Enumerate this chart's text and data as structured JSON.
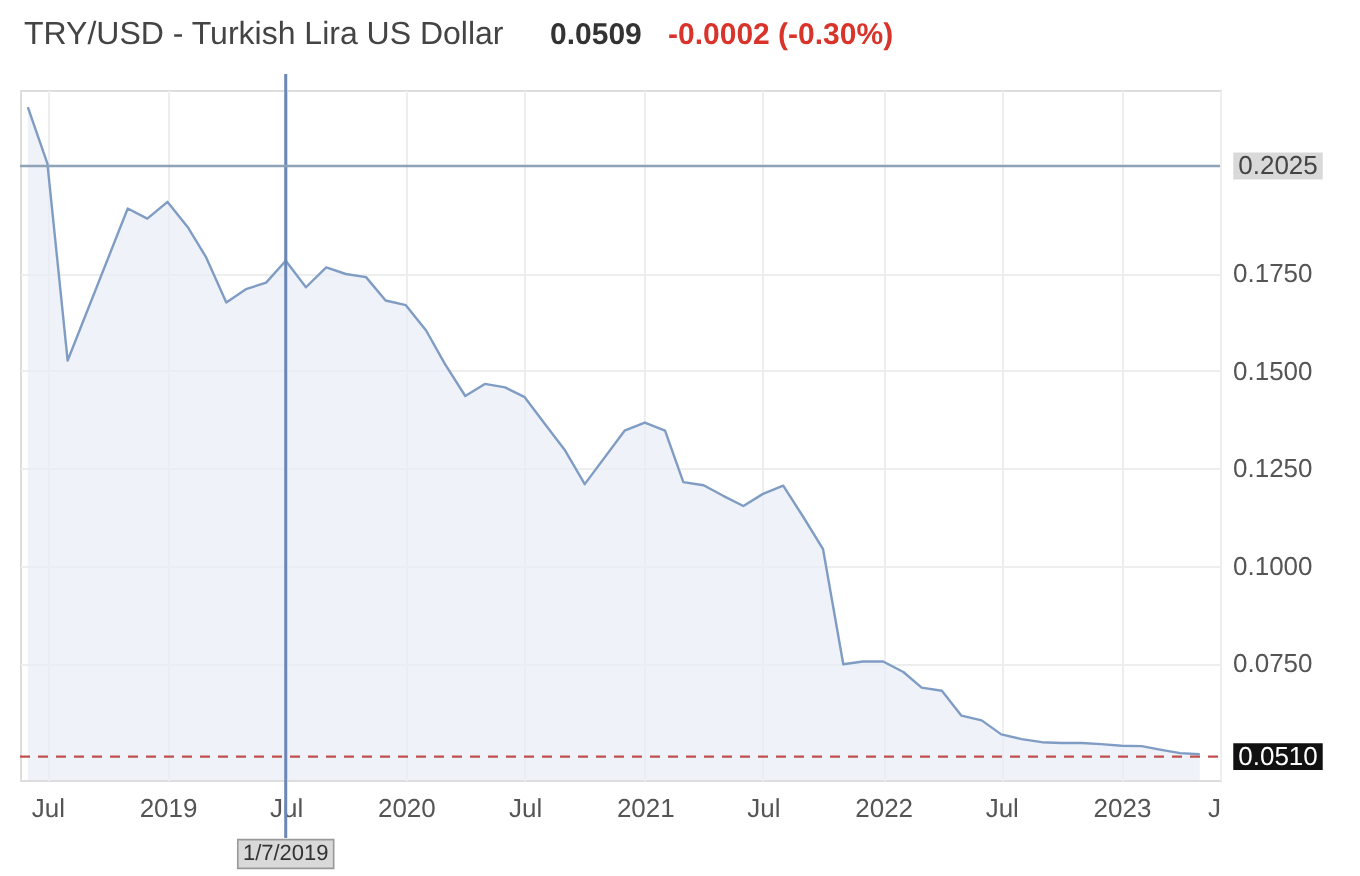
{
  "chart_data": {
    "type": "area",
    "title": "TRY/USD - Turkish Lira US Dollar",
    "annotations": [
      "0.0509",
      "-0.0002 (-0.30%)"
    ],
    "x": [
      "2018-06-01",
      "2018-07-01",
      "2018-08-01",
      "2018-11-01",
      "2018-12-01",
      "2019-01-01",
      "2019-02-01",
      "2019-03-01",
      "2019-04-01",
      "2019-05-01",
      "2019-06-01",
      "2019-07-01",
      "2019-08-01",
      "2019-09-01",
      "2019-10-01",
      "2019-11-01",
      "2019-12-01",
      "2020-01-01",
      "2020-02-01",
      "2020-03-01",
      "2020-04-01",
      "2020-05-01",
      "2020-06-01",
      "2020-07-01",
      "2020-08-01",
      "2020-09-01",
      "2020-10-01",
      "2020-12-01",
      "2021-01-01",
      "2021-02-01",
      "2021-03-01",
      "2021-04-01",
      "2021-05-01",
      "2021-06-01",
      "2021-07-01",
      "2021-08-01",
      "2021-09-01",
      "2021-10-01",
      "2021-11-01",
      "2021-12-01",
      "2022-01-01",
      "2022-02-01",
      "2022-03-01",
      "2022-04-01",
      "2022-05-01",
      "2022-06-01",
      "2022-07-01",
      "2022-08-01",
      "2022-09-01",
      "2022-10-01",
      "2022-11-01",
      "2022-12-01",
      "2023-01-01",
      "2023-02-01",
      "2023-03-01",
      "2023-04-01",
      "2023-05-01"
    ],
    "series": [
      {
        "color": "#7f9cc4",
        "values": [
          0.2176,
          0.2031,
          0.1526,
          0.1916,
          0.189,
          0.1933,
          0.1868,
          0.1791,
          0.1675,
          0.1709,
          0.1726,
          0.1782,
          0.1714,
          0.1765,
          0.1748,
          0.174,
          0.168,
          0.1668,
          0.1603,
          0.1517,
          0.1435,
          0.1466,
          0.1457,
          0.1432,
          0.1363,
          0.1295,
          0.1209,
          0.1346,
          0.1367,
          0.1346,
          0.1214,
          0.1206,
          0.1179,
          0.1153,
          0.1184,
          0.1205,
          0.1124,
          0.1042,
          0.0747,
          0.0754,
          0.0754,
          0.0727,
          0.0687,
          0.0679,
          0.0615,
          0.0603,
          0.0567,
          0.0555,
          0.0547,
          0.0545,
          0.0545,
          0.0542,
          0.0538,
          0.0537,
          0.0528,
          0.0519,
          0.0516
        ]
      }
    ],
    "xlim": [
      "2018-05-20",
      "2023-06-01"
    ],
    "xticks": [
      {
        "value": "2018-07-01",
        "label": "Jul"
      },
      {
        "value": "2019-01-01",
        "label": "2019"
      },
      {
        "value": "2019-07-01",
        "label": "Jul"
      },
      {
        "value": "2020-01-01",
        "label": "2020"
      },
      {
        "value": "2020-07-01",
        "label": "Jul"
      },
      {
        "value": "2021-01-01",
        "label": "2021"
      },
      {
        "value": "2021-07-01",
        "label": "Jul"
      },
      {
        "value": "2022-01-01",
        "label": "2022"
      },
      {
        "value": "2022-07-01",
        "label": "Jul"
      },
      {
        "value": "2023-01-01",
        "label": "2023"
      },
      {
        "value": "2023-06-01",
        "label": "J"
      }
    ],
    "ylim": [
      0.045,
      0.222
    ],
    "yticks": [
      {
        "value": 0.075,
        "label": "0.0750"
      },
      {
        "value": 0.1,
        "label": "0.1000"
      },
      {
        "value": 0.125,
        "label": "0.1250"
      },
      {
        "value": 0.15,
        "label": "0.1500"
      },
      {
        "value": 0.175,
        "label": "0.1750"
      }
    ],
    "grid": true,
    "ref_lines": [
      {
        "axis": "x",
        "value": "2019-07-01",
        "label": "1/7/2019",
        "color": "#6a87b8"
      },
      {
        "axis": "y",
        "value": 0.2025,
        "label": "0.2025",
        "color": "#8fa3b8"
      },
      {
        "axis": "y",
        "value": 0.051,
        "label": "0.0510",
        "color": "#c0504d",
        "line_style": "dashed"
      }
    ]
  }
}
